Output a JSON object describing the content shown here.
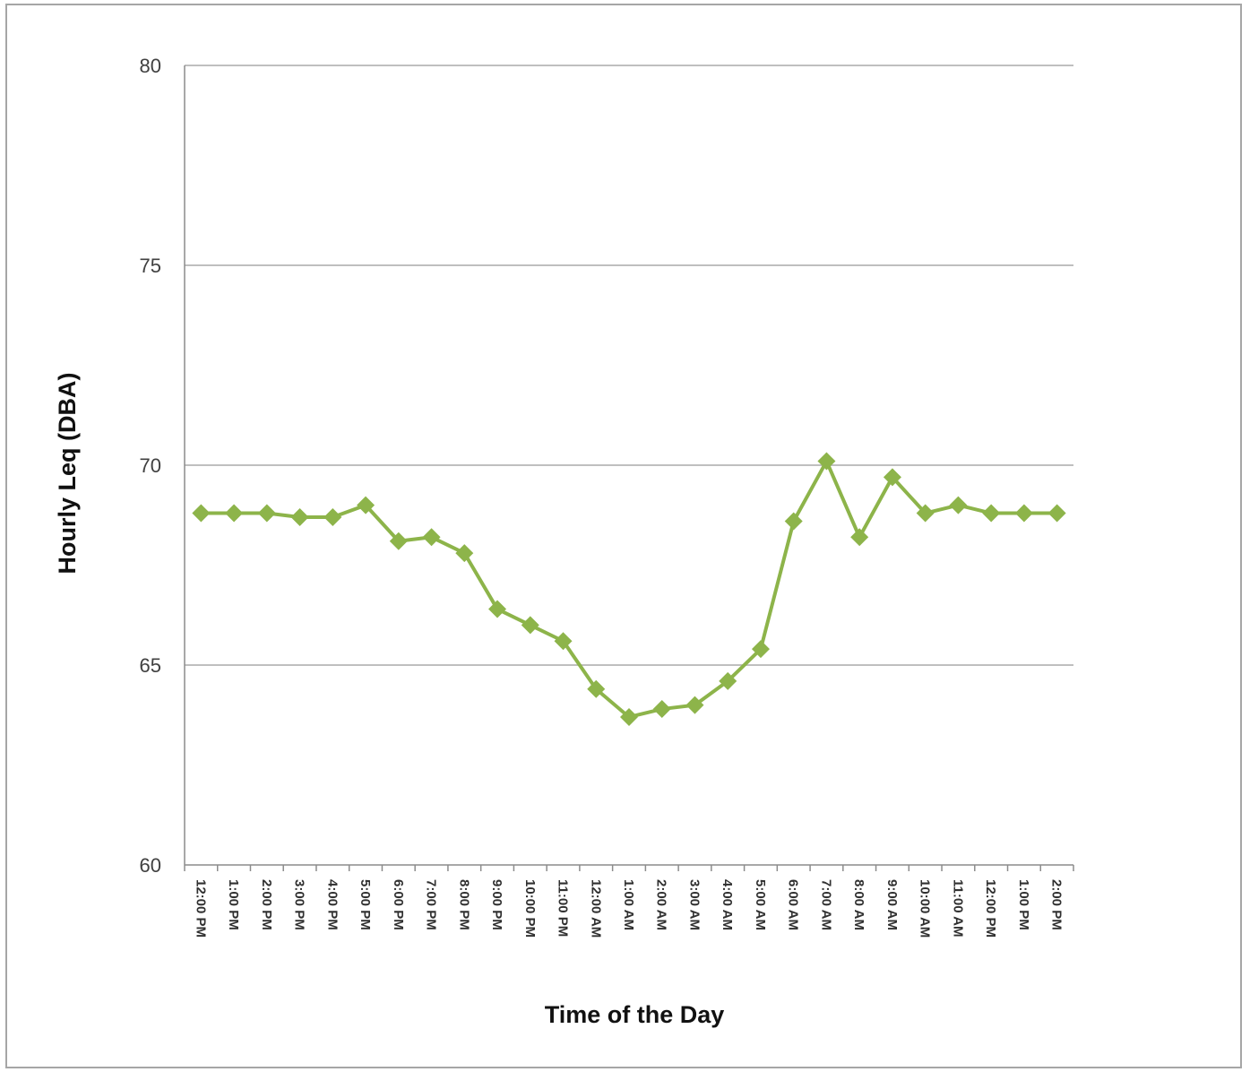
{
  "chart_data": {
    "type": "line",
    "title": "",
    "xlabel": "Time of the Day",
    "ylabel": "Hourly Leq (DBA)",
    "ylim": [
      60,
      80
    ],
    "yticks": [
      "60",
      "65",
      "70",
      "75",
      "80"
    ],
    "grid": true,
    "legend": "none",
    "categories": [
      "12:00 PM",
      "1:00 PM",
      "2:00 PM",
      "3:00 PM",
      "4:00 PM",
      "5:00 PM",
      "6:00 PM",
      "7:00 PM",
      "8:00 PM",
      "9:00 PM",
      "10:00 PM",
      "11:00 PM",
      "12:00 AM",
      "1:00 AM",
      "2:00 AM",
      "3:00 AM",
      "4:00 AM",
      "5:00 AM",
      "6:00 AM",
      "7:00 AM",
      "8:00 AM",
      "9:00 AM",
      "10:00 AM",
      "11:00 AM",
      "12:00 PM",
      "1:00 PM",
      "2:00 PM"
    ],
    "series": [
      {
        "color": "#8db44a",
        "marker": "diamond",
        "values": [
          68.8,
          68.8,
          68.8,
          68.7,
          68.7,
          69.0,
          68.1,
          68.2,
          67.8,
          66.4,
          66.0,
          65.6,
          64.4,
          63.7,
          63.9,
          64.0,
          64.6,
          65.4,
          68.6,
          70.1,
          68.2,
          69.7,
          68.8,
          69.0,
          68.8,
          68.8,
          68.8
        ]
      }
    ]
  }
}
